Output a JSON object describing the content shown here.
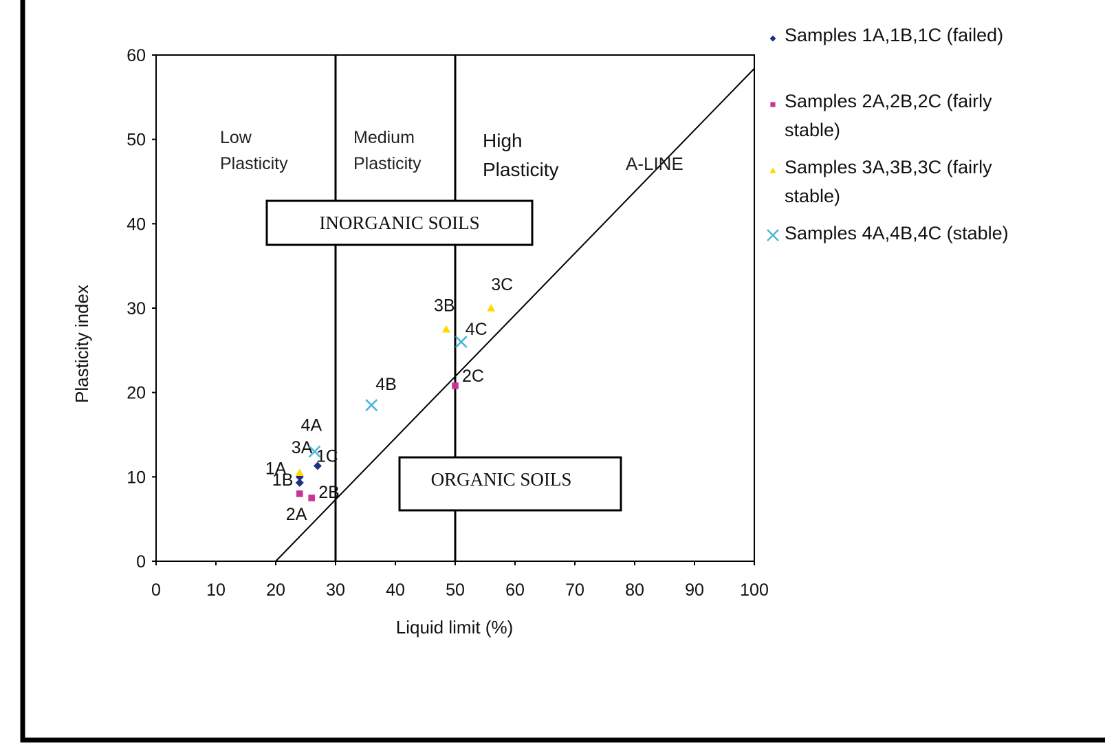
{
  "chart_data": {
    "type": "scatter",
    "xlabel": "Liquid limit (%)",
    "ylabel": "Plasticity  index",
    "xlim": [
      0,
      100
    ],
    "ylim": [
      0,
      60
    ],
    "x_ticks": [
      0,
      10,
      20,
      30,
      40,
      50,
      60,
      70,
      80,
      90,
      100
    ],
    "y_ticks": [
      0,
      10,
      20,
      30,
      40,
      50,
      60
    ],
    "grid": false,
    "legend_position": "top-right outside",
    "series": [
      {
        "name": "Samples 1A,1B,1C (failed)",
        "marker": "diamond",
        "color": "#1f2f86",
        "points": [
          {
            "label": "1A",
            "x": 24,
            "y": 10
          },
          {
            "label": "1B",
            "x": 24,
            "y": 9.3
          },
          {
            "label": "1C",
            "x": 27,
            "y": 11.3
          }
        ]
      },
      {
        "name": "Samples 2A,2B,2C (fairly stable)",
        "marker": "square",
        "color": "#cc3399",
        "points": [
          {
            "label": "2A",
            "x": 24,
            "y": 8
          },
          {
            "label": "2B",
            "x": 26,
            "y": 7.5
          },
          {
            "label": "2C",
            "x": 50,
            "y": 20.8
          }
        ]
      },
      {
        "name": "Samples 3A,3B,3C (fairly stable)",
        "marker": "triangle",
        "color": "#ffd800",
        "points": [
          {
            "label": "3A",
            "x": 24,
            "y": 10.5
          },
          {
            "label": "3B",
            "x": 48.5,
            "y": 27.5
          },
          {
            "label": "3C",
            "x": 56,
            "y": 30
          }
        ]
      },
      {
        "name": "Samples 4A,4B,4C (stable)",
        "marker": "x",
        "color": "#4ab5d8",
        "points": [
          {
            "label": "4A",
            "x": 26.5,
            "y": 13
          },
          {
            "label": "4B",
            "x": 36,
            "y": 18.5
          },
          {
            "label": "4C",
            "x": 51,
            "y": 26
          }
        ]
      }
    ],
    "legend_lines": [
      [
        "Samples 1A,1B,1C (failed)"
      ],
      [
        "Samples 2A,2B,2C (fairly",
        "stable)"
      ],
      [
        "Samples 3A,3B,3C (fairly",
        "stable)"
      ],
      [
        "Samples 4A,4B,4C (stable)"
      ]
    ],
    "reference_lines": [
      {
        "name": "A-LINE",
        "label": "A-LINE",
        "from": [
          20,
          0
        ],
        "to": [
          100,
          58.4
        ]
      },
      {
        "name": "LL=30 boundary",
        "from": [
          30,
          0
        ],
        "to": [
          30,
          60
        ]
      },
      {
        "name": "LL=50 boundary",
        "from": [
          50,
          0
        ],
        "to": [
          50,
          60
        ]
      }
    ],
    "zones": [
      {
        "name": "low-plasticity",
        "lines": [
          "Low",
          "Plasticity"
        ]
      },
      {
        "name": "medium-plasticity",
        "lines": [
          "Medium",
          "Plasticity"
        ]
      },
      {
        "name": "high-plasticity",
        "lines": [
          "High",
          "Plasticity"
        ]
      }
    ],
    "boxes": {
      "inorganic": "INORGANIC SOILS",
      "organic": "ORGANIC SOILS"
    }
  }
}
